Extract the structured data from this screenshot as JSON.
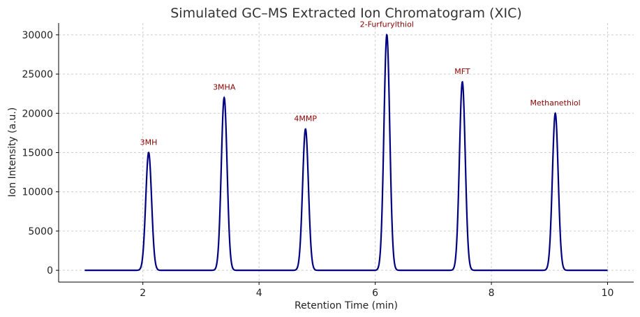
{
  "chart_data": {
    "type": "line",
    "title": "Simulated GC–MS Extracted Ion Chromatogram (XIC)",
    "xlabel": "Retention Time (min)",
    "ylabel": "Ion Intensity (a.u.)",
    "xlim": [
      0.55,
      10.45
    ],
    "ylim": [
      -1500,
      31500
    ],
    "xticks": [
      2,
      4,
      6,
      8,
      10
    ],
    "yticks": [
      0,
      5000,
      10000,
      15000,
      20000,
      25000,
      30000
    ],
    "grid": true,
    "line_color": "#000080",
    "label_color": "#8b0000",
    "x_range": [
      1,
      10
    ],
    "peak_sigma_min": 0.05,
    "peaks": [
      {
        "label": "3MH",
        "rt": 2.1,
        "intensity": 15000
      },
      {
        "label": "3MHA",
        "rt": 3.4,
        "intensity": 22000
      },
      {
        "label": "4MMP",
        "rt": 4.8,
        "intensity": 18000
      },
      {
        "label": "2-Furfurylthiol",
        "rt": 6.2,
        "intensity": 30000
      },
      {
        "label": "MFT",
        "rt": 7.5,
        "intensity": 24000
      },
      {
        "label": "Methanethiol",
        "rt": 9.1,
        "intensity": 20000
      }
    ]
  }
}
